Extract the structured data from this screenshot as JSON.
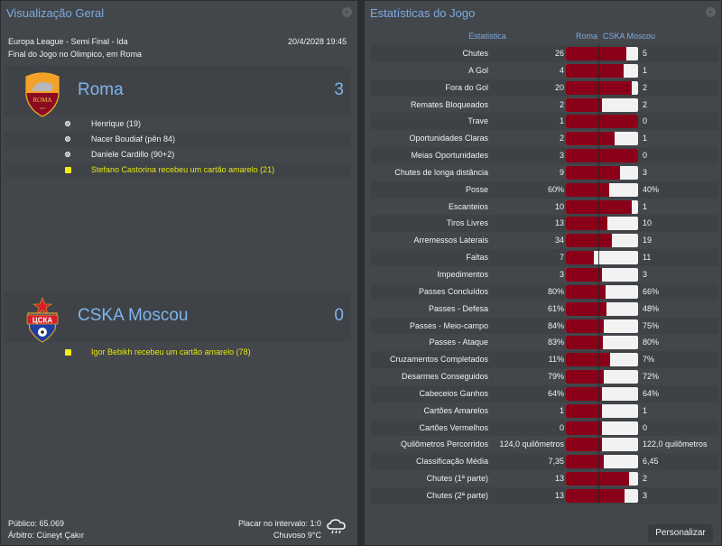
{
  "overview": {
    "title": "Visualização Geral",
    "competition": "Europa League - Semi Final - Ida",
    "datetime": "20/4/2028 19:45",
    "venue": "Final do Jogo no Olimpico, em Roma",
    "home": {
      "name": "Roma",
      "score": "3",
      "badge": "roma-crest",
      "events": [
        {
          "type": "goal",
          "icon": "ball-icon",
          "text": "Henrique (19)"
        },
        {
          "type": "goal",
          "icon": "ball-icon",
          "text": "Nacer Boudiaf (pên 84)"
        },
        {
          "type": "goal",
          "icon": "ball-icon",
          "text": "Daniele Cardillo (90+2)"
        },
        {
          "type": "yellow",
          "icon": "yellow-card-icon",
          "text": "Stefano Castorina recebeu um cartão amarelo (21)"
        }
      ]
    },
    "away": {
      "name": "CSKA Moscou",
      "score": "0",
      "badge": "cska-crest",
      "events": [
        {
          "type": "yellow",
          "icon": "yellow-card-icon",
          "text": "Igor Bebikh recebeu um cartão amarelo (78)"
        }
      ]
    },
    "footer": {
      "attendance": "Público: 65.069",
      "referee": "Árbitro: Cüneyt Çakır",
      "halftime": "Placar no intervalo: 1:0",
      "weather": "Chuvoso 9°C",
      "weather_icon": "rain-cloud-icon"
    }
  },
  "stats": {
    "title": "Estatísticas do Jogo",
    "header": {
      "label": "Estatística",
      "home": "Roma",
      "away": "CSKA Moscou"
    },
    "colors": {
      "home": "#8a0019",
      "away": "#f2f2f2"
    },
    "rows": [
      {
        "label": "Chutes",
        "home": "26",
        "away": "5",
        "home_share": 0.84
      },
      {
        "label": "A Gol",
        "home": "4",
        "away": "1",
        "home_share": 0.8
      },
      {
        "label": "Fora do Gol",
        "home": "20",
        "away": "2",
        "home_share": 0.91
      },
      {
        "label": "Remates Bloqueados",
        "home": "2",
        "away": "2",
        "home_share": 0.5
      },
      {
        "label": "Trave",
        "home": "1",
        "away": "0",
        "home_share": 1.0
      },
      {
        "label": "Oportunidades Claras",
        "home": "2",
        "away": "1",
        "home_share": 0.67
      },
      {
        "label": "Meias Oportunidades",
        "home": "3",
        "away": "0",
        "home_share": 1.0
      },
      {
        "label": "Chutes de longa distância",
        "home": "9",
        "away": "3",
        "home_share": 0.75
      },
      {
        "label": "Posse",
        "home": "60%",
        "away": "40%",
        "home_share": 0.6
      },
      {
        "label": "Escanteios",
        "home": "10",
        "away": "1",
        "home_share": 0.91
      },
      {
        "label": "Tiros Livres",
        "home": "13",
        "away": "10",
        "home_share": 0.57
      },
      {
        "label": "Arremessos Laterais",
        "home": "34",
        "away": "19",
        "home_share": 0.64
      },
      {
        "label": "Faltas",
        "home": "7",
        "away": "11",
        "home_share": 0.39
      },
      {
        "label": "Impedimentos",
        "home": "3",
        "away": "3",
        "home_share": 0.5
      },
      {
        "label": "Passes Concluídos",
        "home": "80%",
        "away": "66%",
        "home_share": 0.55
      },
      {
        "label": "Passes - Defesa",
        "home": "61%",
        "away": "48%",
        "home_share": 0.56
      },
      {
        "label": "Passes - Meio-campo",
        "home": "84%",
        "away": "75%",
        "home_share": 0.53
      },
      {
        "label": "Passes - Ataque",
        "home": "83%",
        "away": "80%",
        "home_share": 0.51
      },
      {
        "label": "Cruzamentos Completados",
        "home": "11%",
        "away": "7%",
        "home_share": 0.61
      },
      {
        "label": "Desarmes Conseguidos",
        "home": "79%",
        "away": "72%",
        "home_share": 0.52
      },
      {
        "label": "Cabeceios Ganhos",
        "home": "64%",
        "away": "64%",
        "home_share": 0.5
      },
      {
        "label": "Cartões Amarelos",
        "home": "1",
        "away": "1",
        "home_share": 0.5
      },
      {
        "label": "Cartões Vermelhos",
        "home": "0",
        "away": "0",
        "home_share": 0.5
      },
      {
        "label": "Quilômetros Percorridos",
        "home": "124,0 quilômetros",
        "away": "122,0 quilômetros",
        "home_share": 0.5
      },
      {
        "label": "Classificação Média",
        "home": "7,35",
        "away": "6,45",
        "home_share": 0.53
      },
      {
        "label": "Chutes (1ª parte)",
        "home": "13",
        "away": "2",
        "home_share": 0.87
      },
      {
        "label": "Chutes (2ª parte)",
        "home": "13",
        "away": "3",
        "home_share": 0.81
      }
    ],
    "customize_label": "Personalizar"
  }
}
